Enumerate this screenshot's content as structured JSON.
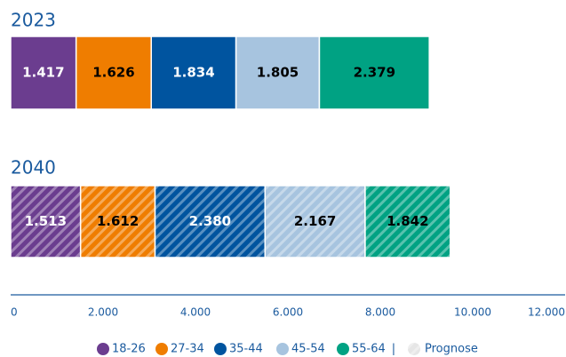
{
  "chart_data": {
    "type": "stacked_barh",
    "categories": [
      "2023",
      "2040"
    ],
    "forecast": [
      false,
      true
    ],
    "forecast_label": "Prognose",
    "legend_separator": "|",
    "series": [
      {
        "name": "18-26",
        "color": "#6b3d8f",
        "label_color": "#ffffff",
        "values": [
          1417,
          1513
        ],
        "value_labels": [
          "1.417",
          "1.513"
        ]
      },
      {
        "name": "27-34",
        "color": "#ef7d00",
        "label_color": "#000000",
        "values": [
          1626,
          1612
        ],
        "value_labels": [
          "1.626",
          "1.612"
        ]
      },
      {
        "name": "35-44",
        "color": "#00549f",
        "label_color": "#ffffff",
        "values": [
          1834,
          2380
        ],
        "value_labels": [
          "1.834",
          "2.380"
        ]
      },
      {
        "name": "45-54",
        "color": "#a7c4df",
        "label_color": "#000000",
        "values": [
          1805,
          2167
        ],
        "value_labels": [
          "1.805",
          "2.167"
        ]
      },
      {
        "name": "55-64",
        "color": "#00a283",
        "label_color": "#000000",
        "values": [
          2379,
          1842
        ],
        "value_labels": [
          "2.379",
          "1.842"
        ]
      }
    ],
    "xlim": [
      0,
      12000
    ],
    "xticks": [
      0,
      {
        "value": 2000,
        "label": "2.000"
      },
      {
        "value": 4000,
        "label": "4.000"
      },
      {
        "value": 6000,
        "label": "6.000"
      },
      {
        "value": 8000,
        "label": "8.000"
      },
      {
        "value": 10000,
        "label": "10.000"
      },
      {
        "value": 12000,
        "label": "12.000"
      }
    ]
  }
}
